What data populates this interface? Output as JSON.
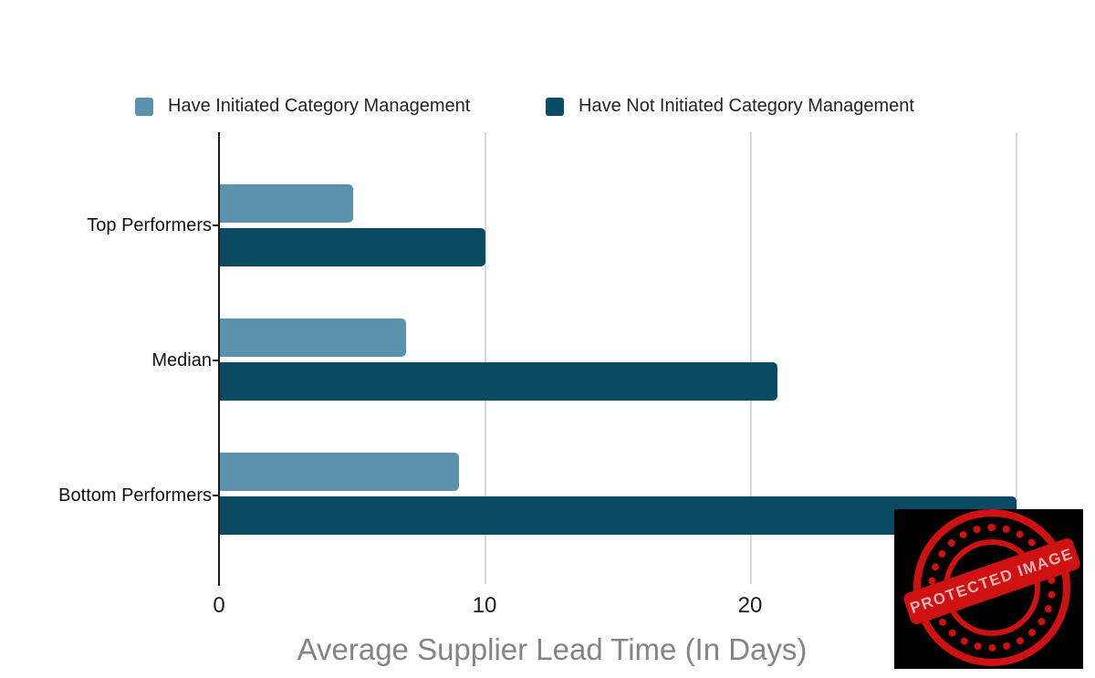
{
  "chart_data": {
    "type": "bar",
    "orientation": "horizontal",
    "title": "",
    "xlabel": "Average Supplier Lead Time (In Days)",
    "categories": [
      "Top Performers",
      "Median",
      "Bottom Performers"
    ],
    "series": [
      {
        "name": "Have Initiated Category Management",
        "color": "#5b92ad",
        "values": [
          5,
          7,
          9
        ]
      },
      {
        "name": "Have Not Initiated Category Management",
        "color": "#0a4a62",
        "values": [
          10,
          21,
          30
        ]
      }
    ],
    "x_ticks": [
      "0",
      "10",
      "20"
    ],
    "x_tick_values": [
      0,
      10,
      20
    ],
    "xlim": [
      0,
      30
    ],
    "grid": true,
    "legend_position": "top",
    "gridline_color": "#d7dbdc",
    "axis_color": "#1a1a1a",
    "xlabel_color": "#848484"
  },
  "watermark": {
    "ribbon_text": "PROTECTED IMAGE",
    "stamp_color": "#cf1111",
    "ribbon_text_color": "#f0b6b6",
    "background": "#000000"
  }
}
